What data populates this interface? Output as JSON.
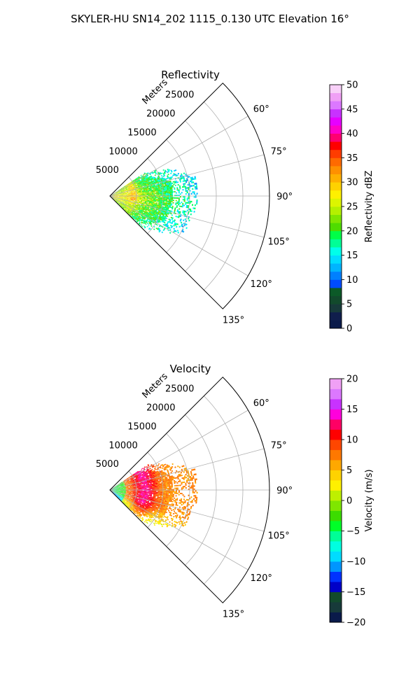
{
  "figure": {
    "suptitle": "SKYLER-HU  SN14_202  1115_0.130 UTC Elevation 16°"
  },
  "chart_data": [
    {
      "type": "heatmap",
      "projection": "polar-sector",
      "title": "Reflectivity",
      "radial_label": "Meters",
      "radial_ticks": [
        5000,
        10000,
        15000,
        20000,
        25000
      ],
      "radial_tick_labels": [
        "5000",
        "10000",
        "15000",
        "20000",
        "25000"
      ],
      "rlim": [
        0,
        30000
      ],
      "azimuth_range_deg": [
        45,
        135
      ],
      "azimuth_ticks": [
        "60°",
        "75°",
        "90°",
        "105°",
        "120°",
        "135°"
      ],
      "grid": true,
      "data_extent": {
        "azimuth_deg": [
          56,
          133
        ],
        "range_m": [
          0,
          15500
        ]
      },
      "colorbar": {
        "label": "Reflectivity dBZ",
        "vmin": 0,
        "vmax": 50,
        "ticks": [
          "0",
          "5",
          "10",
          "15",
          "20",
          "25",
          "30",
          "35",
          "40",
          "45",
          "50"
        ],
        "colors": [
          "#0a1a4a",
          "#101e4c",
          "#173a3a",
          "#124a2c",
          "#0c5a28",
          "#004bff",
          "#0080ff",
          "#00b4ff",
          "#00dcff",
          "#00ffea",
          "#00ff96",
          "#00ff48",
          "#4fdc00",
          "#7fe600",
          "#b4f000",
          "#dcf500",
          "#fff000",
          "#ffd200",
          "#ffb000",
          "#ff9000",
          "#ff6a00",
          "#ff3c00",
          "#ff0000",
          "#ff0070",
          "#ff00c8",
          "#e600ff",
          "#c832ff",
          "#dc78ff",
          "#f0a0f5",
          "#f8d0f8"
        ]
      }
    },
    {
      "type": "heatmap",
      "projection": "polar-sector",
      "title": "Velocity",
      "radial_label": "Meters",
      "radial_ticks": [
        5000,
        10000,
        15000,
        20000,
        25000
      ],
      "radial_tick_labels": [
        "5000",
        "10000",
        "15000",
        "20000",
        "25000"
      ],
      "rlim": [
        0,
        30000
      ],
      "azimuth_range_deg": [
        45,
        135
      ],
      "azimuth_ticks": [
        "60°",
        "75°",
        "90°",
        "105°",
        "120°",
        "135°"
      ],
      "grid": true,
      "data_extent": {
        "azimuth_deg": [
          56,
          133
        ],
        "range_m": [
          0,
          15500
        ]
      },
      "colorbar": {
        "label": "Velocity (m/s)",
        "vmin": -20,
        "vmax": 20,
        "ticks": [
          "−20",
          "−15",
          "−10",
          "−5",
          "0",
          "5",
          "10",
          "15",
          "20"
        ],
        "colors": [
          "#0a1a4a",
          "#173a3a",
          "#124a2c",
          "#0000c8",
          "#0032ff",
          "#0096ff",
          "#00dcff",
          "#00ffe0",
          "#00ff96",
          "#00ff28",
          "#3cdc00",
          "#7fe600",
          "#bef000",
          "#fff000",
          "#ffd200",
          "#ffa800",
          "#ff7800",
          "#ff4600",
          "#ff0000",
          "#ff0064",
          "#ff00dc",
          "#c832ff",
          "#dc78ff",
          "#f0a0f5"
        ]
      }
    }
  ]
}
